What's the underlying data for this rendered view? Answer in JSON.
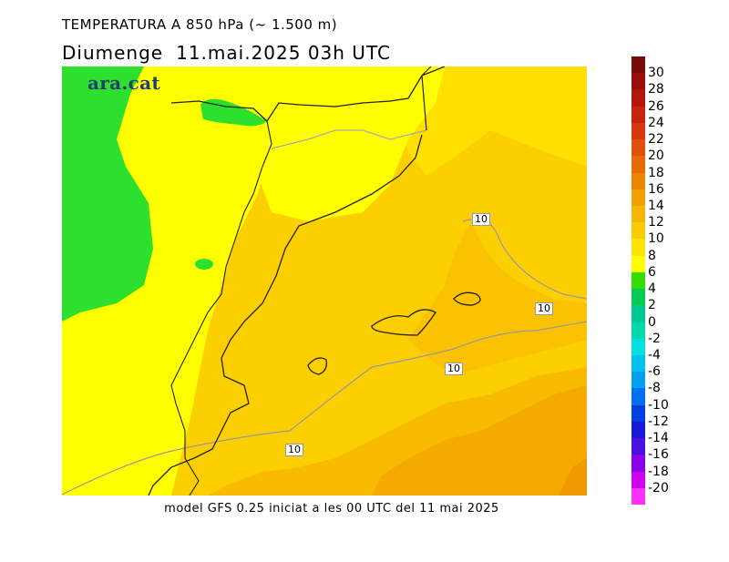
{
  "title_line1": "TEMPERATURA A 850 hPa (~ 1.500 m)",
  "title_day": "Diumenge",
  "title_date": "11.mai.2025 03h UTC",
  "brand": "ara.cat",
  "footer": "model GFS 0.25 iniciat a les 00 UTC del 11 mai 2025",
  "contour_labels": [
    "10",
    "10",
    "10",
    "10"
  ],
  "legend": {
    "labels": [
      "30",
      "28",
      "26",
      "24",
      "22",
      "20",
      "18",
      "16",
      "14",
      "12",
      "10",
      "8",
      "6",
      "4",
      "2",
      "0",
      "-2",
      "-4",
      "-6",
      "-8",
      "-10",
      "-12",
      "-14",
      "-16",
      "-18",
      "-20"
    ],
    "colors": [
      "#7a0b0b",
      "#9a0d0d",
      "#b5150f",
      "#c8230f",
      "#d8380d",
      "#e14f0a",
      "#e86a05",
      "#ee8500",
      "#f2a000",
      "#f5b800",
      "#f8cc00",
      "#fae400",
      "#ffff00",
      "#33dd00",
      "#00cc55",
      "#00c890",
      "#00d8b0",
      "#00e0e0",
      "#00c0f0",
      "#00a0f0",
      "#0070f0",
      "#0040e0",
      "#1a1ad8",
      "#4a10e0",
      "#8a00e8",
      "#d000f0",
      "#ff30ff"
    ]
  },
  "map_colors": {
    "green": "#2ee02e",
    "yellow": "#ffff00",
    "light_yellow_orange": "#ffd400",
    "yellow_orange": "#fcca00",
    "orange": "#f9bc00",
    "deep_orange": "#f5aa00",
    "darkest": "#f29800"
  }
}
